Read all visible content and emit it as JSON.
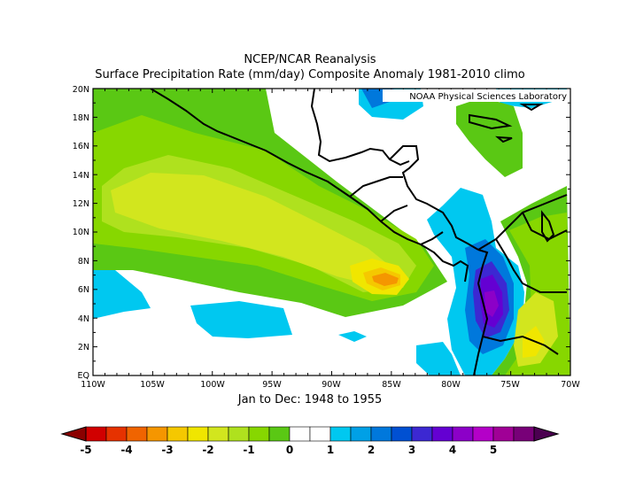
{
  "title": "NCEP/NCAR Reanalysis",
  "subtitle": "Surface Precipitation Rate (mm/day) Composite Anomaly 1981-2010 climo",
  "credit": "NOAA Physical Sciences Laboratory",
  "caption": "Jan to Dec: 1948 to 1955",
  "map": {
    "region": "Eastern tropical Pacific / Central America / NW South America",
    "lon_range": [
      -110,
      -70
    ],
    "lat_range": [
      0,
      20
    ],
    "lat_labels": [
      "EQ",
      "2N",
      "4N",
      "6N",
      "8N",
      "10N",
      "12N",
      "14N",
      "16N",
      "18N",
      "20N"
    ],
    "lon_labels": [
      "110W",
      "105W",
      "100W",
      "95W",
      "90W",
      "85W",
      "80W",
      "75W",
      "70W"
    ]
  },
  "colorbar": {
    "unit": "mm/day",
    "labels": [
      "-5",
      "-4",
      "-3",
      "-2",
      "-1",
      "0",
      "1",
      "2",
      "3",
      "4",
      "5"
    ],
    "colors": [
      "#d10000",
      "#e63200",
      "#f06400",
      "#f59600",
      "#f5c800",
      "#f0e600",
      "#d2e61e",
      "#afe11e",
      "#87d700",
      "#5ac814",
      "#ffffff",
      "#ffffff",
      "#00c8f0",
      "#00a0e6",
      "#0078dc",
      "#0050d2",
      "#3c28d2",
      "#6400d2",
      "#8c00c8",
      "#b400c8",
      "#a00096",
      "#780078"
    ]
  }
}
